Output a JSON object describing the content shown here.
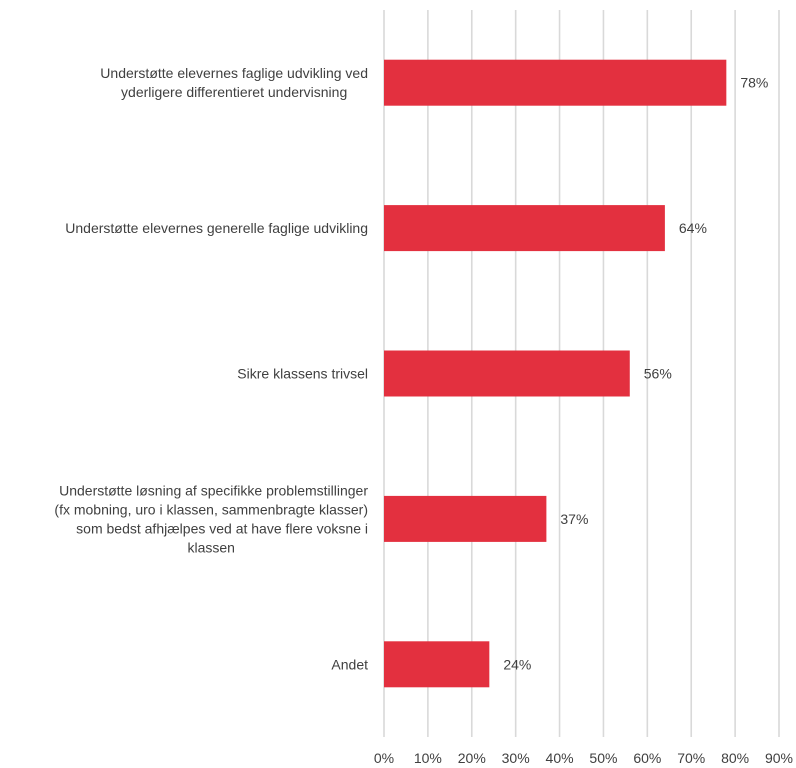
{
  "chart_data": {
    "type": "bar",
    "orientation": "horizontal",
    "title": "",
    "xlabel": "",
    "ylabel": "",
    "xlim": [
      0,
      90
    ],
    "grid": true,
    "bar_color": "#e3303f",
    "categories": [
      "Understøtte elevernes faglige udvikling ved yderligere differentieret undervisning",
      "Understøtte elevernes generelle faglige udvikling",
      "Sikre klassens trivsel",
      "Understøtte løsning af specifikke problemstillinger (fx mobning, uro i klassen, sammenbragte klasser) som bedst afhjælpes ved at have flere voksne i klassen",
      "Andet"
    ],
    "category_lines": [
      [
        "Understøtte elevernes faglige udvikling ved",
        "yderligere differentieret undervisning"
      ],
      [
        "Understøtte elevernes generelle faglige udvikling"
      ],
      [
        "Sikre klassens trivsel"
      ],
      [
        "Understøtte løsning af specifikke problemstillinger",
        "(fx mobning, uro i klassen, sammenbragte klasser)",
        "som bedst afhjælpes ved at have flere voksne i",
        "klassen"
      ],
      [
        "Andet"
      ]
    ],
    "values": [
      78,
      64,
      56,
      37,
      24
    ],
    "data_labels": [
      "78%",
      "64%",
      "56%",
      "37%",
      "24%"
    ],
    "x_ticks": [
      0,
      10,
      20,
      30,
      40,
      50,
      60,
      70,
      80,
      90
    ],
    "x_tick_labels": [
      "0%",
      "10%",
      "20%",
      "30%",
      "40%",
      "50%",
      "60%",
      "70%",
      "80%",
      "90%"
    ]
  }
}
